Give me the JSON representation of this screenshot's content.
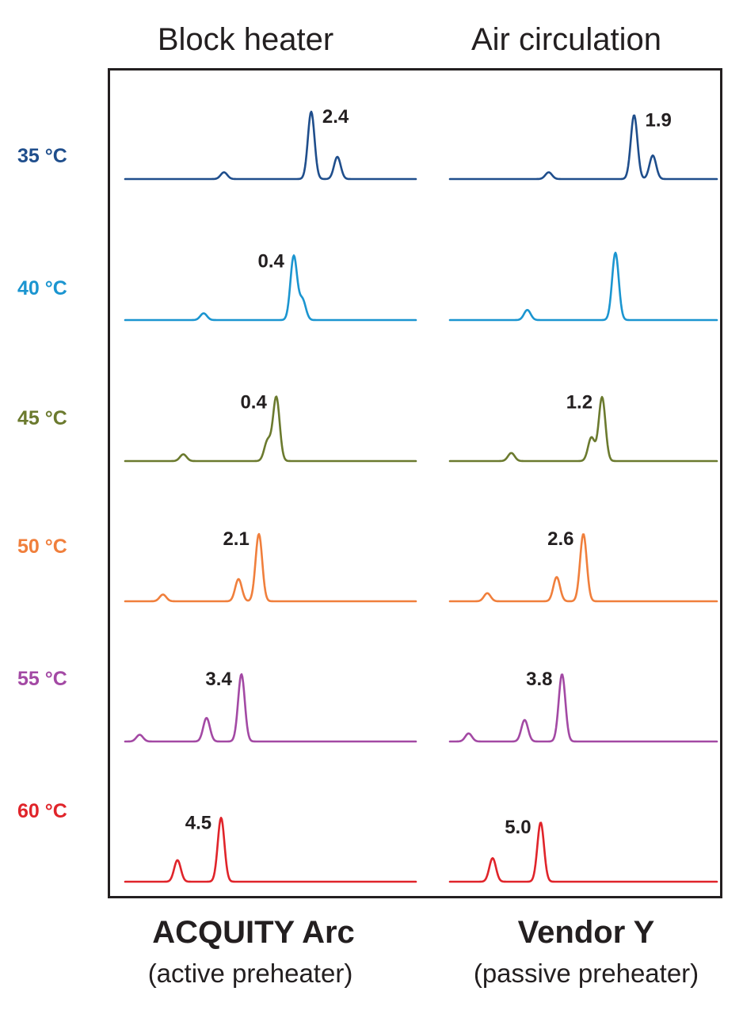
{
  "columns": [
    {
      "header": "Block heater",
      "system": "ACQUITY Arc",
      "subtitle": "(active preheater)"
    },
    {
      "header": "Air circulation",
      "system": "Vendor Y",
      "subtitle": "(passive preheater)"
    }
  ],
  "chart_data": {
    "type": "line",
    "title": "",
    "xlabel": "",
    "ylabel": "",
    "grid": false,
    "rows": [
      {
        "temperature": "35 °C",
        "color": "#1f4e8c",
        "left": {
          "resolution": "2.4",
          "peaks": [
            {
              "t": 0.34,
              "h": 0.1
            },
            {
              "t": 0.64,
              "h": 1.0
            },
            {
              "t": 0.73,
              "h": 0.33
            }
          ]
        },
        "right": {
          "resolution": "1.9",
          "peaks": [
            {
              "t": 0.37,
              "h": 0.1
            },
            {
              "t": 0.69,
              "h": 0.95
            },
            {
              "t": 0.76,
              "h": 0.35
            }
          ]
        }
      },
      {
        "temperature": "40 °C",
        "color": "#1b95d0",
        "left": {
          "resolution": "0.4",
          "peaks": [
            {
              "t": 0.27,
              "h": 0.1
            },
            {
              "t": 0.58,
              "h": 0.95
            },
            {
              "t": 0.61,
              "h": 0.3
            }
          ]
        },
        "right": {
          "resolution": "",
          "peaks": [
            {
              "t": 0.29,
              "h": 0.15
            },
            {
              "t": 0.62,
              "h": 1.0
            }
          ]
        }
      },
      {
        "temperature": "45 °C",
        "color": "#6b7a2e",
        "left": {
          "resolution": "0.4",
          "peaks": [
            {
              "t": 0.2,
              "h": 0.1
            },
            {
              "t": 0.49,
              "h": 0.3
            },
            {
              "t": 0.52,
              "h": 0.95
            }
          ]
        },
        "right": {
          "resolution": "1.2",
          "peaks": [
            {
              "t": 0.23,
              "h": 0.12
            },
            {
              "t": 0.53,
              "h": 0.35
            },
            {
              "t": 0.57,
              "h": 0.95
            }
          ]
        }
      },
      {
        "temperature": "50 °C",
        "color": "#f07f3c",
        "left": {
          "resolution": "2.1",
          "peaks": [
            {
              "t": 0.13,
              "h": 0.1
            },
            {
              "t": 0.39,
              "h": 0.33
            },
            {
              "t": 0.46,
              "h": 1.0
            }
          ]
        },
        "right": {
          "resolution": "2.6",
          "peaks": [
            {
              "t": 0.14,
              "h": 0.12
            },
            {
              "t": 0.4,
              "h": 0.36
            },
            {
              "t": 0.5,
              "h": 1.0
            }
          ]
        }
      },
      {
        "temperature": "55 °C",
        "color": "#a349a4",
        "left": {
          "resolution": "3.4",
          "peaks": [
            {
              "t": 0.05,
              "h": 0.1
            },
            {
              "t": 0.28,
              "h": 0.35
            },
            {
              "t": 0.4,
              "h": 1.0
            }
          ]
        },
        "right": {
          "resolution": "3.8",
          "peaks": [
            {
              "t": 0.07,
              "h": 0.12
            },
            {
              "t": 0.28,
              "h": 0.32
            },
            {
              "t": 0.42,
              "h": 1.0
            }
          ]
        }
      },
      {
        "temperature": "60 °C",
        "color": "#e0242a",
        "left": {
          "resolution": "4.5",
          "peaks": [
            {
              "t": 0.18,
              "h": 0.32
            },
            {
              "t": 0.33,
              "h": 0.95
            }
          ]
        },
        "right": {
          "resolution": "5.0",
          "peaks": [
            {
              "t": 0.16,
              "h": 0.35
            },
            {
              "t": 0.34,
              "h": 0.88
            }
          ]
        }
      }
    ]
  }
}
